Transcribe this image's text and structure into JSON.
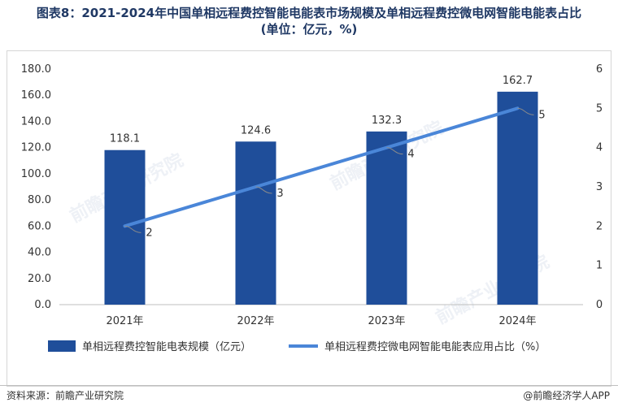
{
  "title_line1": "图表8：2021-2024年中国单相远程费控智能电能表市场规模及单相远程费控微电网智能电能表占比",
  "title_line2": "(单位：亿元，%)",
  "source": "资料来源：前瞻产业研究院",
  "brand": "@前瞻经济学人APP",
  "watermark": "前瞻产业研究院",
  "colors": {
    "bar": "#1f4e9a",
    "line": "#4a86d8",
    "title": "#1f3864"
  },
  "chart_data": {
    "type": "bar",
    "categories": [
      "2021年",
      "2022年",
      "2023年",
      "2024年"
    ],
    "series": [
      {
        "name": "单相远程费控智能电表规模（亿元）",
        "type": "bar",
        "axis": "left",
        "values": [
          118.1,
          124.6,
          132.3,
          162.7
        ]
      },
      {
        "name": "单相远程费控微电网智能电能表应用占比（%）",
        "type": "line",
        "axis": "right",
        "values": [
          2,
          3,
          4,
          5
        ]
      }
    ],
    "y_left": {
      "ylim": [
        0,
        180
      ],
      "ticks": [
        "0.0",
        "20.0",
        "40.0",
        "60.0",
        "80.0",
        "100.0",
        "120.0",
        "140.0",
        "160.0",
        "180.0"
      ]
    },
    "y_right": {
      "ylim": [
        0,
        6
      ],
      "ticks": [
        "0",
        "1",
        "2",
        "3",
        "4",
        "5",
        "6"
      ]
    },
    "bar_labels": [
      "118.1",
      "124.6",
      "132.3",
      "162.7"
    ],
    "line_labels": [
      "2",
      "3",
      "4",
      "5"
    ],
    "legend_position": "bottom"
  }
}
